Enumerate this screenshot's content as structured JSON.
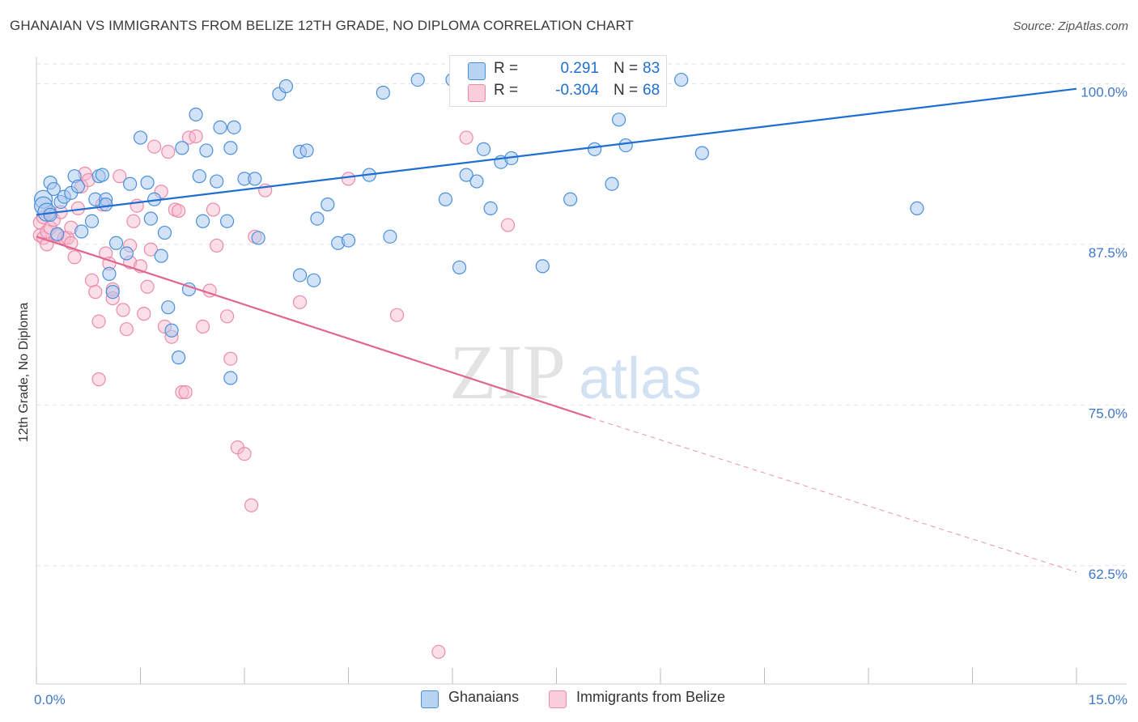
{
  "header": {
    "title": "GHANAIAN VS IMMIGRANTS FROM BELIZE 12TH GRADE, NO DIPLOMA CORRELATION CHART",
    "source": "Source: ZipAtlas.com"
  },
  "watermark": {
    "zip": "ZIP",
    "atlas": "atlas"
  },
  "colors": {
    "blue": "#1f6fd1",
    "blue_fill": "#a8c8f0",
    "blue_stroke": "#4a8fdc",
    "pink": "#e0668f",
    "pink_fill": "#f6b8cb",
    "pink_stroke": "#ec8aaa",
    "tick_label": "#3f77c8",
    "grid": "#e2e2e2"
  },
  "legend": {
    "r_label": "R =",
    "n_label": "N =",
    "rows": [
      {
        "r": "0.291",
        "n": "83"
      },
      {
        "r": "-0.304",
        "n": "68"
      }
    ]
  },
  "chart_data": {
    "type": "scatter",
    "title": "GHANAIAN VS IMMIGRANTS FROM BELIZE 12TH GRADE, NO DIPLOMA CORRELATION CHART",
    "xlabel": "",
    "ylabel": "12th Grade, No Diploma",
    "x_unit": "%",
    "xlim": [
      0,
      15
    ],
    "ylim": [
      53.3,
      102.1
    ],
    "x_tick_labels": [
      "0.0%",
      "15.0%"
    ],
    "y_ticks": [
      62.5,
      75.0,
      87.5,
      100.0
    ],
    "y_tick_labels": [
      "62.5%",
      "75.0%",
      "87.5%",
      "100.0%"
    ],
    "grid": true,
    "legend_position": "top-center",
    "series": [
      {
        "name": "Ghanaians",
        "r": 0.291,
        "n": 83,
        "trend": {
          "x": [
            0.0,
            15.0
          ],
          "y": [
            89.8,
            99.6
          ]
        },
        "points": [
          [
            0.1,
            91.0
          ],
          [
            0.1,
            90.5
          ],
          [
            0.15,
            90.0
          ],
          [
            0.2,
            92.3
          ],
          [
            0.2,
            89.8
          ],
          [
            0.25,
            91.8
          ],
          [
            0.3,
            88.3
          ],
          [
            0.35,
            90.8
          ],
          [
            0.4,
            91.2
          ],
          [
            0.5,
            91.5
          ],
          [
            0.55,
            92.8
          ],
          [
            0.6,
            92.0
          ],
          [
            0.65,
            88.5
          ],
          [
            0.8,
            89.3
          ],
          [
            0.85,
            91.0
          ],
          [
            0.9,
            92.8
          ],
          [
            0.95,
            92.9
          ],
          [
            1.0,
            91.0
          ],
          [
            1.0,
            90.6
          ],
          [
            1.05,
            85.2
          ],
          [
            1.1,
            83.8
          ],
          [
            1.15,
            87.6
          ],
          [
            1.3,
            86.8
          ],
          [
            1.35,
            92.2
          ],
          [
            1.5,
            95.8
          ],
          [
            1.6,
            92.3
          ],
          [
            1.65,
            89.5
          ],
          [
            1.7,
            91.0
          ],
          [
            1.8,
            86.6
          ],
          [
            1.85,
            88.4
          ],
          [
            1.9,
            82.6
          ],
          [
            1.95,
            80.8
          ],
          [
            2.05,
            78.7
          ],
          [
            2.1,
            95.0
          ],
          [
            2.2,
            84.0
          ],
          [
            2.3,
            97.6
          ],
          [
            2.35,
            92.8
          ],
          [
            2.4,
            89.3
          ],
          [
            2.45,
            94.8
          ],
          [
            2.6,
            92.4
          ],
          [
            2.65,
            96.6
          ],
          [
            2.75,
            89.3
          ],
          [
            2.8,
            95.0
          ],
          [
            2.85,
            96.6
          ],
          [
            2.8,
            77.1
          ],
          [
            3.0,
            92.6
          ],
          [
            3.15,
            92.6
          ],
          [
            3.2,
            88.0
          ],
          [
            3.5,
            99.2
          ],
          [
            3.6,
            99.8
          ],
          [
            3.8,
            94.7
          ],
          [
            3.9,
            94.8
          ],
          [
            3.8,
            85.1
          ],
          [
            4.05,
            89.5
          ],
          [
            4.0,
            84.7
          ],
          [
            4.2,
            90.6
          ],
          [
            4.35,
            87.6
          ],
          [
            4.5,
            87.8
          ],
          [
            4.8,
            92.9
          ],
          [
            5.0,
            99.3
          ],
          [
            5.1,
            88.1
          ],
          [
            5.5,
            100.3
          ],
          [
            5.9,
            91.0
          ],
          [
            6.0,
            100.3
          ],
          [
            6.1,
            85.7
          ],
          [
            6.2,
            92.9
          ],
          [
            6.35,
            92.4
          ],
          [
            6.45,
            94.9
          ],
          [
            6.55,
            90.3
          ],
          [
            6.7,
            93.9
          ],
          [
            6.8,
            100.2
          ],
          [
            6.85,
            94.2
          ],
          [
            6.95,
            100.2
          ],
          [
            7.3,
            85.8
          ],
          [
            7.5,
            99.5
          ],
          [
            7.7,
            91.0
          ],
          [
            8.05,
            94.9
          ],
          [
            8.3,
            92.2
          ],
          [
            8.4,
            97.2
          ],
          [
            8.5,
            95.2
          ],
          [
            9.3,
            100.3
          ],
          [
            9.6,
            94.6
          ],
          [
            12.7,
            90.3
          ]
        ]
      },
      {
        "name": "Immigrants from Belize",
        "r": -0.304,
        "n": 68,
        "trend": {
          "x": [
            0.0,
            8.0
          ],
          "y": [
            88.1,
            74.0
          ]
        },
        "trend_dashed": {
          "x": [
            8.0,
            15.0
          ],
          "y": [
            74.0,
            62.0
          ]
        },
        "points": [
          [
            0.05,
            89.2
          ],
          [
            0.05,
            88.2
          ],
          [
            0.1,
            89.6
          ],
          [
            0.1,
            88.0
          ],
          [
            0.15,
            88.5
          ],
          [
            0.15,
            87.5
          ],
          [
            0.2,
            90.0
          ],
          [
            0.2,
            88.8
          ],
          [
            0.25,
            89.4
          ],
          [
            0.3,
            88.2
          ],
          [
            0.35,
            90.0
          ],
          [
            0.4,
            88.0
          ],
          [
            0.45,
            88.0
          ],
          [
            0.5,
            88.8
          ],
          [
            0.5,
            87.6
          ],
          [
            0.55,
            86.5
          ],
          [
            0.6,
            90.3
          ],
          [
            0.65,
            92.0
          ],
          [
            0.7,
            93.0
          ],
          [
            0.75,
            92.5
          ],
          [
            0.8,
            84.7
          ],
          [
            0.85,
            83.8
          ],
          [
            0.9,
            81.5
          ],
          [
            0.9,
            77.0
          ],
          [
            0.95,
            90.6
          ],
          [
            1.0,
            86.8
          ],
          [
            1.05,
            86.0
          ],
          [
            1.1,
            84.0
          ],
          [
            1.1,
            83.3
          ],
          [
            1.2,
            92.8
          ],
          [
            1.25,
            82.4
          ],
          [
            1.3,
            80.9
          ],
          [
            1.35,
            87.4
          ],
          [
            1.35,
            86.1
          ],
          [
            1.4,
            89.3
          ],
          [
            1.45,
            90.5
          ],
          [
            1.5,
            85.8
          ],
          [
            1.55,
            82.1
          ],
          [
            1.6,
            84.2
          ],
          [
            1.65,
            87.1
          ],
          [
            1.7,
            95.1
          ],
          [
            1.8,
            91.6
          ],
          [
            1.85,
            81.1
          ],
          [
            1.9,
            94.7
          ],
          [
            1.95,
            80.3
          ],
          [
            2.0,
            90.2
          ],
          [
            2.05,
            90.1
          ],
          [
            2.1,
            76.0
          ],
          [
            2.15,
            76.0
          ],
          [
            2.2,
            95.8
          ],
          [
            2.3,
            95.9
          ],
          [
            2.4,
            81.1
          ],
          [
            2.5,
            83.9
          ],
          [
            2.55,
            90.2
          ],
          [
            2.6,
            87.4
          ],
          [
            2.75,
            81.9
          ],
          [
            2.8,
            78.6
          ],
          [
            2.9,
            71.7
          ],
          [
            3.0,
            71.2
          ],
          [
            3.1,
            67.2
          ],
          [
            3.15,
            88.1
          ],
          [
            3.3,
            91.7
          ],
          [
            3.8,
            83.0
          ],
          [
            4.5,
            92.6
          ],
          [
            5.2,
            82.0
          ],
          [
            5.8,
            55.8
          ],
          [
            6.2,
            95.8
          ],
          [
            6.8,
            89.0
          ]
        ]
      }
    ]
  },
  "bottom_legend": [
    "Ghanaians",
    "Immigrants from Belize"
  ]
}
